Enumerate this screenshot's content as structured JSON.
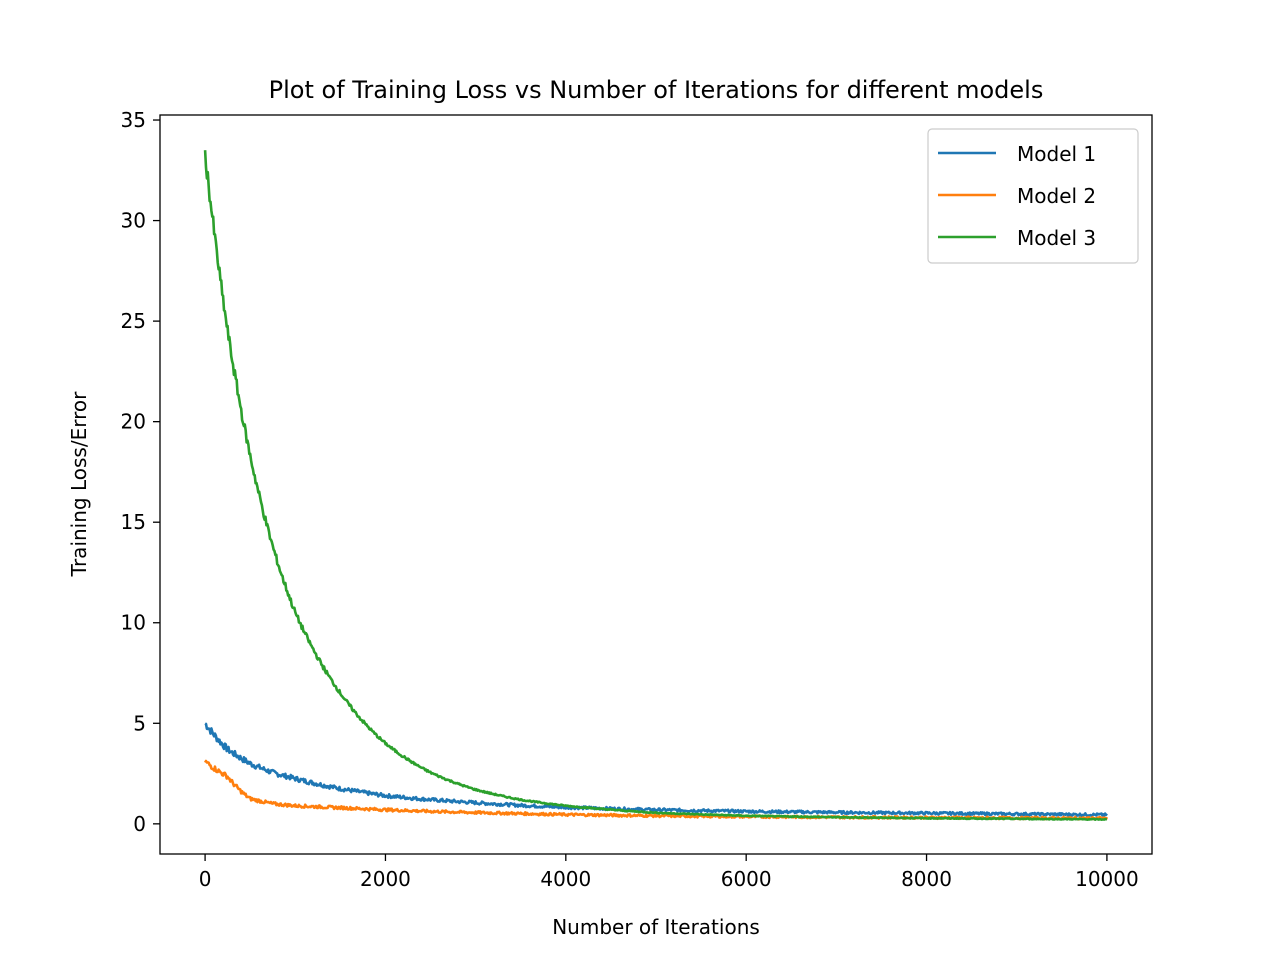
{
  "chart_data": {
    "type": "line",
    "title": "Plot of Training Loss vs Number of Iterations for different models",
    "xlabel": "Number of Iterations",
    "ylabel": "Training Loss/Error",
    "xlim": [
      -500,
      10500
    ],
    "ylim": [
      -1.5,
      35.25
    ],
    "x_ticks": [
      0,
      2000,
      4000,
      6000,
      8000,
      10000
    ],
    "x_tick_labels": [
      "0",
      "2000",
      "4000",
      "6000",
      "8000",
      "10000"
    ],
    "y_ticks": [
      0,
      5,
      10,
      15,
      20,
      25,
      30,
      35
    ],
    "y_tick_labels": [
      "0",
      "5",
      "10",
      "15",
      "20",
      "25",
      "30",
      "35"
    ],
    "grid": false,
    "legend_position": "top-right",
    "x": [
      0,
      250,
      500,
      750,
      1000,
      1500,
      2000,
      2500,
      3000,
      3500,
      4000,
      5000,
      6000,
      7000,
      8000,
      9000,
      10000
    ],
    "series": [
      {
        "name": "Model 1",
        "color": "#1f77b4",
        "values": [
          5.0,
          3.7,
          3.0,
          2.55,
          2.25,
          1.75,
          1.4,
          1.2,
          1.05,
          0.92,
          0.82,
          0.7,
          0.62,
          0.57,
          0.53,
          0.49,
          0.45
        ]
      },
      {
        "name": "Model 2",
        "color": "#ff7f0e",
        "values": [
          3.1,
          2.35,
          1.25,
          1.0,
          0.9,
          0.8,
          0.7,
          0.62,
          0.56,
          0.51,
          0.46,
          0.4,
          0.36,
          0.33,
          0.31,
          0.29,
          0.28
        ]
      },
      {
        "name": "Model 3",
        "color": "#2ca02c",
        "values": [
          33.3,
          24.5,
          18.3,
          13.8,
          10.5,
          6.5,
          4.0,
          2.55,
          1.7,
          1.2,
          0.9,
          0.55,
          0.4,
          0.33,
          0.28,
          0.25,
          0.22
        ]
      }
    ]
  }
}
